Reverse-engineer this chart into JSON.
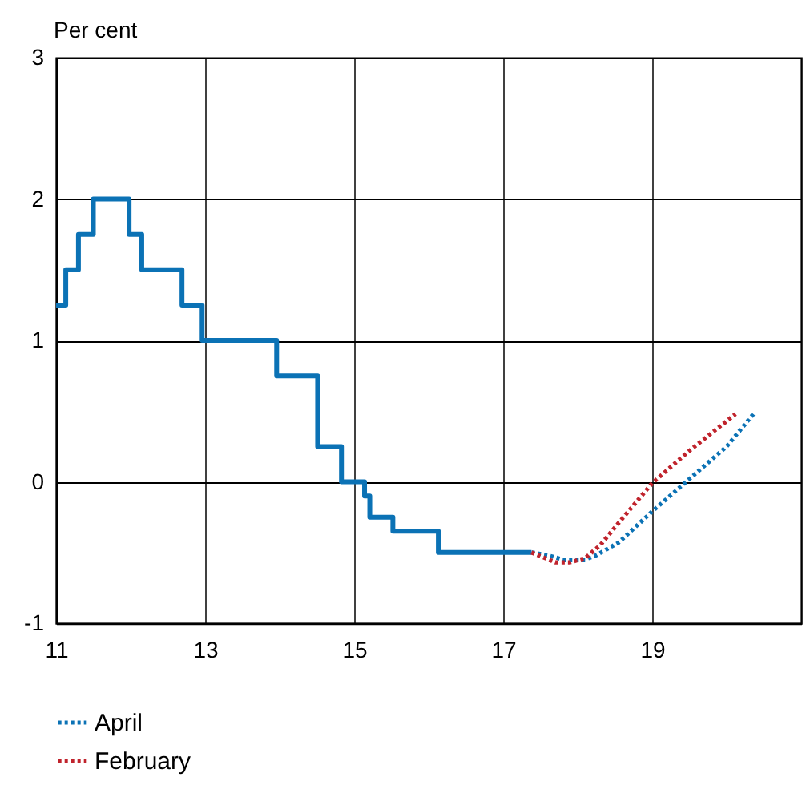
{
  "chart_data": {
    "type": "line",
    "ylabel": "Per cent",
    "xlim": [
      11,
      21
    ],
    "xticks": [
      11,
      13,
      15,
      17,
      19
    ],
    "ylim": [
      -1,
      3
    ],
    "yticks": [
      -1,
      0,
      1,
      2,
      3
    ],
    "grid": true,
    "legend": "bottom left",
    "series": [
      {
        "type": "step",
        "color": "#0b72b5",
        "line_style": "solid",
        "x": [
          11,
          11.13,
          11.3,
          11.5,
          11.98,
          12.15,
          12.69,
          12.96,
          13.96,
          14.51,
          14.83,
          15.14,
          15.21,
          15.52,
          16.13,
          17.38
        ],
        "values": [
          1.25,
          1.5,
          1.75,
          2,
          1.75,
          1.5,
          1.25,
          1,
          0.75,
          0.25,
          0,
          -0.1,
          -0.25,
          -0.35,
          -0.5,
          -0.5
        ]
      },
      {
        "name": "April",
        "color": "#0b72b5",
        "line_style": "dotted",
        "x": [
          17.38,
          17.6,
          17.8,
          18.1,
          18.25,
          18.55,
          19.0,
          19.5,
          20.0,
          20.36
        ],
        "values": [
          -0.5,
          -0.52,
          -0.55,
          -0.55,
          -0.52,
          -0.43,
          -0.21,
          0.02,
          0.25,
          0.48
        ]
      },
      {
        "name": "February",
        "color": "#c0232c",
        "line_style": "dotted",
        "x": [
          17.38,
          17.7,
          17.9,
          18.1,
          18.3,
          18.6,
          19.0,
          19.5,
          20.12
        ],
        "values": [
          -0.5,
          -0.57,
          -0.57,
          -0.54,
          -0.45,
          -0.26,
          -0.01,
          0.22,
          0.48
        ]
      }
    ]
  }
}
